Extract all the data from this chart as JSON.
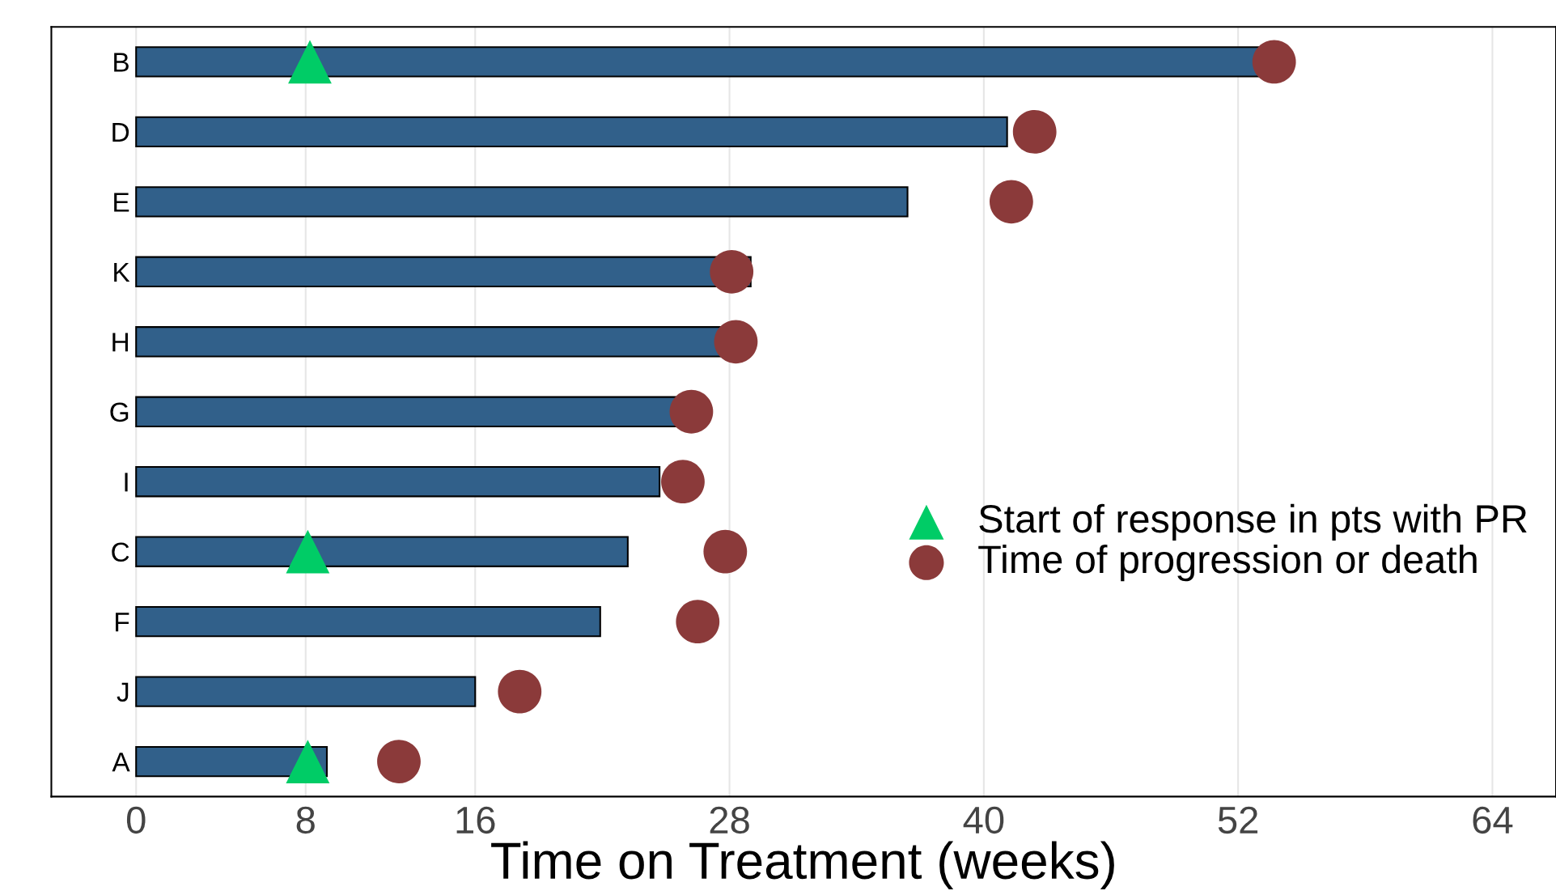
{
  "chart_data": {
    "type": "bar",
    "orientation": "horizontal",
    "xlabel": "Time on Treatment (weeks)",
    "categories": [
      "B",
      "D",
      "E",
      "K",
      "H",
      "G",
      "I",
      "C",
      "F",
      "J",
      "A"
    ],
    "series": [
      {
        "color": "#31608a",
        "values": [
          53.2,
          41.1,
          36.4,
          29.0,
          27.9,
          25.6,
          24.7,
          23.2,
          21.9,
          16.0,
          9.0
        ]
      },
      {
        "type": "scatter",
        "name": "Start of response in pts with PR",
        "color": "#00cc66",
        "marker": "triangle",
        "values": [
          8.2,
          null,
          null,
          null,
          null,
          null,
          null,
          8.1,
          null,
          null,
          8.1
        ]
      },
      {
        "type": "scatter",
        "name": "Time of progression or death",
        "color": "#8b3a3a",
        "marker": "circle",
        "values": [
          53.7,
          42.4,
          41.3,
          28.1,
          28.3,
          26.2,
          25.8,
          27.8,
          26.5,
          18.1,
          12.4
        ]
      }
    ],
    "xlim": [
      -4,
      67
    ],
    "xticks": [
      0,
      8,
      16,
      28,
      40,
      52,
      64
    ],
    "grid": "x",
    "legend": "right"
  }
}
